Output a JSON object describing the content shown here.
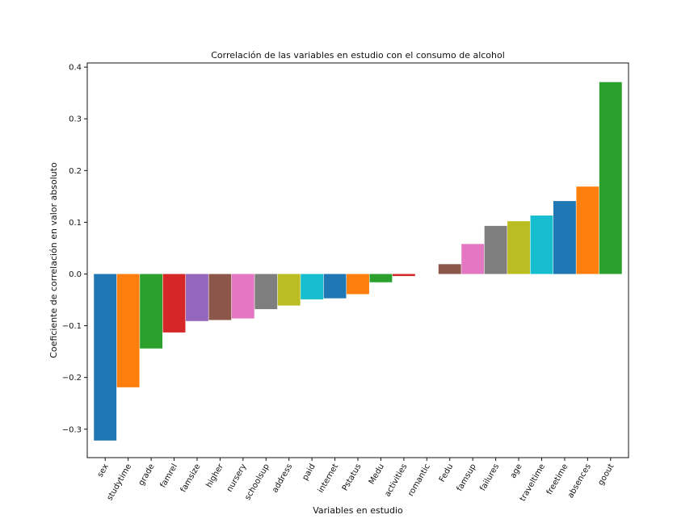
{
  "chart_data": {
    "type": "bar",
    "title": "Correlación de las variables en estudio con el consumo de alcohol",
    "xlabel": "Variables en estudio",
    "ylabel": "Coeficiente de correlación en valor absoluto",
    "ylim": [
      -0.355,
      0.408
    ],
    "yticks": [
      -0.3,
      -0.2,
      -0.1,
      0.0,
      0.1,
      0.2,
      0.3,
      0.4
    ],
    "ytick_labels": [
      "−0.3",
      "−0.2",
      "−0.1",
      "0.0",
      "0.1",
      "0.2",
      "0.3",
      "0.4"
    ],
    "grid": false,
    "categories": [
      "sex",
      "studytime",
      "grade",
      "famrel",
      "famsize",
      "higher",
      "nursery",
      "schoolsup",
      "address",
      "paid",
      "internet",
      "Pstatus",
      "Medu",
      "activities",
      "romantic",
      "Fedu",
      "famsup",
      "failures",
      "age",
      "traveltime",
      "freetime",
      "absences",
      "goout"
    ],
    "values": [
      -0.322,
      -0.219,
      -0.144,
      -0.113,
      -0.091,
      -0.089,
      -0.086,
      -0.068,
      -0.061,
      -0.049,
      -0.047,
      -0.039,
      -0.016,
      -0.004,
      0.0,
      0.019,
      0.058,
      0.093,
      0.102,
      0.113,
      0.141,
      0.169,
      0.371
    ],
    "colors": [
      "#1f77b4",
      "#ff7f0e",
      "#2ca02c",
      "#d62728",
      "#9467bd",
      "#8c564b",
      "#e377c2",
      "#7f7f7f",
      "#bcbd22",
      "#17becf",
      "#1f77b4",
      "#ff7f0e",
      "#2ca02c",
      "#d62728",
      "#9467bd",
      "#8c564b",
      "#e377c2",
      "#7f7f7f",
      "#bcbd22",
      "#17becf",
      "#1f77b4",
      "#ff7f0e",
      "#2ca02c"
    ]
  }
}
